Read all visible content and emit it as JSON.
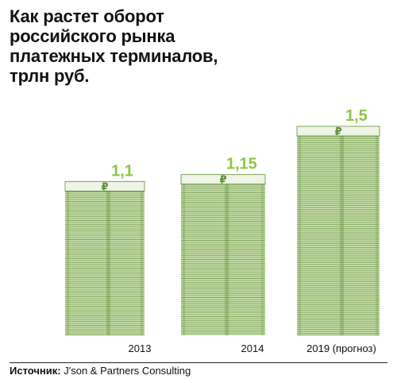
{
  "title": "Как растет оборот российского рынка платежных терминалов, трлн руб.",
  "source": {
    "label": "Источник:",
    "text": "J'son & Partners Consulting"
  },
  "colors": {
    "value_label": "#8dc63f",
    "stack_dark": "#5f8f3a",
    "stack_light": "#cfe3b4",
    "stack_top": "#eef5e4"
  },
  "chart_data": {
    "type": "bar",
    "title": "Как растет оборот российского рынка платежных терминалов, трлн руб.",
    "categories": [
      "2013",
      "2014",
      "2019 (прогноз)"
    ],
    "values": [
      1.1,
      1.15,
      1.5
    ],
    "value_labels": [
      "1,1",
      "1,15",
      "1,5"
    ],
    "xlabel": "",
    "ylabel": "",
    "grid": false,
    "legend": "none",
    "style": "stacks of banknotes with ruble sign"
  }
}
